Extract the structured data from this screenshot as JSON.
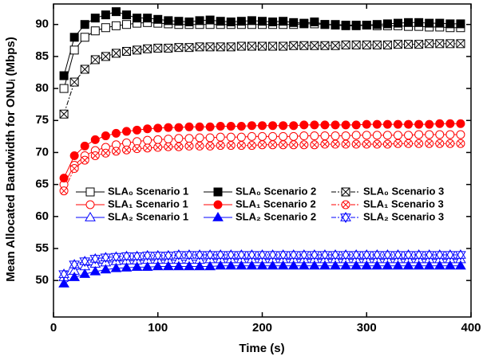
{
  "chart_data": {
    "type": "line",
    "x_label": "Time (s)",
    "y_label": "Mean Allocated Bandwidth for ONUᵢ (Mbps)",
    "xlim": [
      0,
      400
    ],
    "xticks": [
      0,
      100,
      200,
      300,
      400
    ],
    "ylim": [
      44.3,
      93.2
    ],
    "yticks": [
      50,
      55,
      60,
      65,
      70,
      75,
      80,
      85,
      90
    ],
    "grid": false,
    "x": [
      10,
      20,
      30,
      40,
      50,
      60,
      70,
      80,
      90,
      100,
      110,
      120,
      130,
      140,
      150,
      160,
      170,
      180,
      190,
      200,
      210,
      220,
      230,
      240,
      250,
      260,
      270,
      280,
      290,
      300,
      310,
      320,
      330,
      340,
      350,
      360,
      370,
      380,
      390
    ],
    "series": [
      {
        "name": "SLA₀ Scenario 1",
        "color": "#000000",
        "marker": "square",
        "fill": "open",
        "dash": "solid",
        "values": [
          80,
          86,
          88,
          89,
          89.5,
          89.8,
          90,
          90.2,
          90.3,
          90.2,
          90.1,
          90,
          90,
          90,
          90,
          90,
          90,
          90,
          90,
          90,
          90,
          90,
          90,
          90.1,
          90.1,
          90,
          90,
          89.9,
          89.9,
          89.9,
          89.8,
          89.8,
          89.8,
          89.7,
          89.7,
          89.6,
          89.6,
          89.5,
          89.5
        ]
      },
      {
        "name": "SLA₀ Scenario 2",
        "color": "#000000",
        "marker": "square",
        "fill": "filled",
        "dash": "solid",
        "values": [
          82,
          88,
          90,
          91,
          91.5,
          92,
          91.5,
          91,
          91,
          90.8,
          90.6,
          90.5,
          90.4,
          90.6,
          90.7,
          90.5,
          90.4,
          90.5,
          90.6,
          90.5,
          90.4,
          90.5,
          90.3,
          90.2,
          90.4,
          90,
          89.9,
          89.8,
          89.8,
          89.9,
          90,
          90.1,
          90.2,
          90.3,
          90.3,
          90.2,
          90.2,
          90.1,
          90.1
        ]
      },
      {
        "name": "SLA₀ Scenario 3",
        "color": "#000000",
        "marker": "square",
        "fill": "cross",
        "dash": "dashdot",
        "values": [
          76,
          81,
          83,
          84.5,
          85,
          85.5,
          85.8,
          86,
          86.2,
          86.3,
          86.3,
          86.4,
          86.4,
          86.5,
          86.5,
          86.5,
          86.5,
          86.6,
          86.6,
          86.6,
          86.6,
          86.6,
          86.7,
          86.7,
          86.7,
          86.7,
          86.7,
          86.8,
          86.8,
          86.8,
          86.8,
          86.8,
          86.9,
          86.9,
          86.9,
          87,
          87,
          87,
          87
        ]
      },
      {
        "name": "SLA₁ Scenario 1",
        "color": "#ff0000",
        "marker": "circle",
        "fill": "open",
        "dash": "solid",
        "values": [
          65,
          68,
          69.5,
          70.3,
          70.8,
          71.2,
          71.5,
          71.7,
          71.9,
          72,
          72.1,
          72.2,
          72.2,
          72.3,
          72.3,
          72.4,
          72.4,
          72.4,
          72.5,
          72.5,
          72.5,
          72.5,
          72.5,
          72.6,
          72.6,
          72.6,
          72.6,
          72.6,
          72.7,
          72.7,
          72.7,
          72.7,
          72.7,
          72.7,
          72.8,
          72.8,
          72.8,
          72.8,
          72.8
        ]
      },
      {
        "name": "SLA₁ Scenario 2",
        "color": "#ff0000",
        "marker": "circle",
        "fill": "filled",
        "dash": "solid",
        "values": [
          66,
          69.5,
          71,
          72,
          72.6,
          73,
          73.3,
          73.5,
          73.7,
          73.8,
          73.9,
          73.9,
          74,
          74,
          74,
          74.1,
          74.1,
          74.1,
          74.2,
          74.2,
          74.2,
          74.2,
          74.2,
          74.3,
          74.3,
          74.3,
          74.3,
          74.3,
          74.3,
          74.4,
          74.4,
          74.4,
          74.4,
          74.4,
          74.4,
          74.4,
          74.5,
          74.5,
          74.5
        ]
      },
      {
        "name": "SLA₁ Scenario 3",
        "color": "#ff0000",
        "marker": "circle",
        "fill": "cross",
        "dash": "dashdot",
        "values": [
          64,
          67.5,
          68.8,
          69.5,
          69.9,
          70.2,
          70.4,
          70.6,
          70.7,
          70.8,
          70.9,
          70.9,
          71,
          71,
          71,
          71.1,
          71.1,
          71.1,
          71.1,
          71.2,
          71.2,
          71.2,
          71.2,
          71.2,
          71.2,
          71.3,
          71.3,
          71.3,
          71.3,
          71.3,
          71.3,
          71.3,
          71.4,
          71.4,
          71.4,
          71.4,
          71.4,
          71.4,
          71.4
        ]
      },
      {
        "name": "SLA₂ Scenario 1",
        "color": "#0000ff",
        "marker": "triangle",
        "fill": "open",
        "dash": "solid",
        "values": [
          50.5,
          51.5,
          52.2,
          52.6,
          52.8,
          53,
          53.1,
          53.1,
          53.2,
          53.2,
          53.2,
          53.2,
          53.2,
          53.2,
          53.3,
          53.3,
          53.3,
          53.3,
          53.3,
          53.3,
          53.3,
          53.3,
          53.3,
          53.3,
          53.3,
          53.3,
          53.3,
          53.3,
          53.3,
          53.3,
          53.3,
          53.3,
          53.3,
          53.3,
          53.3,
          53.3,
          53.3,
          53.3,
          53.3
        ]
      },
      {
        "name": "SLA₂ Scenario 2",
        "color": "#0000ff",
        "marker": "triangle",
        "fill": "filled",
        "dash": "solid",
        "values": [
          49.5,
          50.5,
          51,
          51.4,
          51.7,
          51.9,
          52,
          52.1,
          52.1,
          52.2,
          52.2,
          52.2,
          52.2,
          52.2,
          52.2,
          52.3,
          52.3,
          52.3,
          52.3,
          52.3,
          52.3,
          52.3,
          52.3,
          52.3,
          52.3,
          52.3,
          52.3,
          52.3,
          52.3,
          52.3,
          52.3,
          52.3,
          52.3,
          52.3,
          52.3,
          52.3,
          52.3,
          52.3,
          52.3
        ]
      },
      {
        "name": "SLA₂ Scenario 3",
        "color": "#0000ff",
        "marker": "triangle",
        "fill": "cross",
        "dash": "dashdot",
        "values": [
          51,
          52.5,
          53,
          53.4,
          53.6,
          53.7,
          53.8,
          53.8,
          53.9,
          53.9,
          53.9,
          54,
          54,
          54,
          54,
          54,
          54,
          54,
          54,
          54,
          54,
          54,
          54,
          54,
          54,
          54,
          54,
          54,
          54,
          54,
          54,
          54,
          54,
          54,
          54,
          54,
          54,
          54,
          54
        ]
      }
    ]
  }
}
